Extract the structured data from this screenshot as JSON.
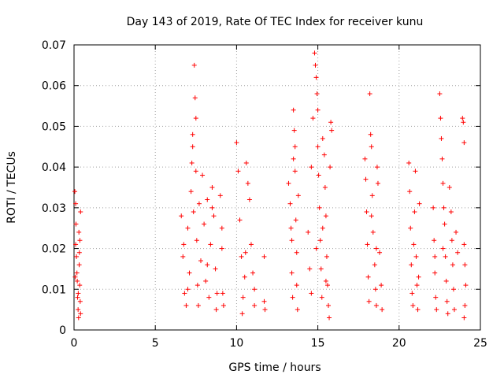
{
  "chart_data": {
    "type": "scatter",
    "title": "Day 143 of 2019, Rate Of TEC Index for receiver kunu",
    "xlabel": "GPS time / hours",
    "ylabel": "ROTI / TECUs",
    "xlim": [
      0,
      25
    ],
    "ylim": [
      0,
      0.07
    ],
    "xticks": [
      0,
      5,
      10,
      15,
      20,
      25
    ],
    "yticks": [
      0,
      0.01,
      0.02,
      0.03,
      0.04,
      0.05,
      0.06,
      0.07
    ],
    "xtick_labels": [
      "0",
      "5",
      "10",
      "15",
      "20",
      "25"
    ],
    "ytick_labels": [
      "0",
      "0.01",
      "0.02",
      "0.03",
      "0.04",
      "0.05",
      "0.06",
      "0.07"
    ],
    "grid": true,
    "marker": "plus",
    "color": "#ff0000",
    "series": [
      {
        "points": [
          [
            0.05,
            0.034
          ],
          [
            0.1,
            0.031
          ],
          [
            0.12,
            0.026
          ],
          [
            0.15,
            0.018
          ],
          [
            0.2,
            0.012
          ],
          [
            0.22,
            0.008
          ],
          [
            0.25,
            0.005
          ],
          [
            0.28,
            0.003
          ],
          [
            0.3,
            0.024
          ],
          [
            0.32,
            0.016
          ],
          [
            0.35,
            0.011
          ],
          [
            0.38,
            0.007
          ],
          [
            0.4,
            0.004
          ],
          [
            0.1,
            0.021
          ],
          [
            0.18,
            0.014
          ],
          [
            0.26,
            0.009
          ],
          [
            0.33,
            0.019
          ],
          [
            0.4,
            0.029
          ],
          [
            0.07,
            0.013
          ],
          [
            0.36,
            0.022
          ],
          [
            6.6,
            0.028
          ],
          [
            6.7,
            0.018
          ],
          [
            6.8,
            0.009
          ],
          [
            6.9,
            0.006
          ],
          [
            7.0,
            0.025
          ],
          [
            7.1,
            0.014
          ],
          [
            7.2,
            0.034
          ],
          [
            7.25,
            0.041
          ],
          [
            7.3,
            0.045
          ],
          [
            7.35,
            0.029
          ],
          [
            7.4,
            0.065
          ],
          [
            7.45,
            0.057
          ],
          [
            7.5,
            0.052
          ],
          [
            7.5,
            0.039
          ],
          [
            7.55,
            0.022
          ],
          [
            7.6,
            0.011
          ],
          [
            7.65,
            0.006
          ],
          [
            7.7,
            0.031
          ],
          [
            7.8,
            0.017
          ],
          [
            7.9,
            0.038
          ],
          [
            8.0,
            0.026
          ],
          [
            8.1,
            0.012
          ],
          [
            8.2,
            0.032
          ],
          [
            8.3,
            0.008
          ],
          [
            8.4,
            0.021
          ],
          [
            8.5,
            0.035
          ],
          [
            8.6,
            0.028
          ],
          [
            8.7,
            0.015
          ],
          [
            8.75,
            0.005
          ],
          [
            8.8,
            0.009
          ],
          [
            7.3,
            0.048
          ],
          [
            7.0,
            0.01
          ],
          [
            6.75,
            0.021
          ],
          [
            8.5,
            0.03
          ],
          [
            8.2,
            0.016
          ],
          [
            9.0,
            0.033
          ],
          [
            9.1,
            0.025
          ],
          [
            9.1,
            0.02
          ],
          [
            9.15,
            0.009
          ],
          [
            9.2,
            0.006
          ],
          [
            10.0,
            0.046
          ],
          [
            10.1,
            0.039
          ],
          [
            10.2,
            0.027
          ],
          [
            10.3,
            0.018
          ],
          [
            10.4,
            0.008
          ],
          [
            10.5,
            0.013
          ],
          [
            10.6,
            0.041
          ],
          [
            10.7,
            0.036
          ],
          [
            10.8,
            0.032
          ],
          [
            10.9,
            0.021
          ],
          [
            11.0,
            0.014
          ],
          [
            11.1,
            0.006
          ],
          [
            11.1,
            0.01
          ],
          [
            10.35,
            0.004
          ],
          [
            10.55,
            0.019
          ],
          [
            11.7,
            0.018
          ],
          [
            11.7,
            0.007
          ],
          [
            11.75,
            0.005
          ],
          [
            13.2,
            0.036
          ],
          [
            13.3,
            0.031
          ],
          [
            13.35,
            0.025
          ],
          [
            13.4,
            0.014
          ],
          [
            13.45,
            0.008
          ],
          [
            13.5,
            0.054
          ],
          [
            13.55,
            0.049
          ],
          [
            13.6,
            0.045
          ],
          [
            13.6,
            0.039
          ],
          [
            13.65,
            0.027
          ],
          [
            13.7,
            0.019
          ],
          [
            13.7,
            0.011
          ],
          [
            13.75,
            0.005
          ],
          [
            13.8,
            0.033
          ],
          [
            13.5,
            0.042
          ],
          [
            13.4,
            0.022
          ],
          [
            14.4,
            0.024
          ],
          [
            14.5,
            0.015
          ],
          [
            14.6,
            0.009
          ],
          [
            14.7,
            0.052
          ],
          [
            14.8,
            0.068
          ],
          [
            14.85,
            0.065
          ],
          [
            14.9,
            0.062
          ],
          [
            14.95,
            0.058
          ],
          [
            15.0,
            0.054
          ],
          [
            15.0,
            0.045
          ],
          [
            15.05,
            0.038
          ],
          [
            15.1,
            0.03
          ],
          [
            15.15,
            0.022
          ],
          [
            15.2,
            0.015
          ],
          [
            15.25,
            0.008
          ],
          [
            15.3,
            0.047
          ],
          [
            15.4,
            0.043
          ],
          [
            15.45,
            0.035
          ],
          [
            15.5,
            0.028
          ],
          [
            15.55,
            0.018
          ],
          [
            15.6,
            0.011
          ],
          [
            15.65,
            0.006
          ],
          [
            15.7,
            0.003
          ],
          [
            15.75,
            0.04
          ],
          [
            15.8,
            0.051
          ],
          [
            15.85,
            0.049
          ],
          [
            14.9,
            0.02
          ],
          [
            15.3,
            0.025
          ],
          [
            15.5,
            0.012
          ],
          [
            14.6,
            0.04
          ],
          [
            17.9,
            0.042
          ],
          [
            17.95,
            0.037
          ],
          [
            18.0,
            0.029
          ],
          [
            18.05,
            0.021
          ],
          [
            18.1,
            0.013
          ],
          [
            18.15,
            0.007
          ],
          [
            18.2,
            0.058
          ],
          [
            18.25,
            0.048
          ],
          [
            18.3,
            0.045
          ],
          [
            18.35,
            0.033
          ],
          [
            18.4,
            0.024
          ],
          [
            18.5,
            0.016
          ],
          [
            18.55,
            0.01
          ],
          [
            18.6,
            0.006
          ],
          [
            18.65,
            0.04
          ],
          [
            18.7,
            0.036
          ],
          [
            18.8,
            0.019
          ],
          [
            18.9,
            0.011
          ],
          [
            18.95,
            0.005
          ],
          [
            18.3,
            0.028
          ],
          [
            18.6,
            0.02
          ],
          [
            20.6,
            0.041
          ],
          [
            20.65,
            0.034
          ],
          [
            20.7,
            0.025
          ],
          [
            20.75,
            0.016
          ],
          [
            20.8,
            0.009
          ],
          [
            20.85,
            0.006
          ],
          [
            20.9,
            0.021
          ],
          [
            20.95,
            0.029
          ],
          [
            21.0,
            0.039
          ],
          [
            21.05,
            0.018
          ],
          [
            21.1,
            0.011
          ],
          [
            21.15,
            0.005
          ],
          [
            21.2,
            0.013
          ],
          [
            21.25,
            0.031
          ],
          [
            22.1,
            0.03
          ],
          [
            22.15,
            0.022
          ],
          [
            22.2,
            0.014
          ],
          [
            22.25,
            0.008
          ],
          [
            22.3,
            0.005
          ],
          [
            22.5,
            0.058
          ],
          [
            22.55,
            0.052
          ],
          [
            22.6,
            0.047
          ],
          [
            22.65,
            0.042
          ],
          [
            22.7,
            0.036
          ],
          [
            22.75,
            0.03
          ],
          [
            22.8,
            0.026
          ],
          [
            22.85,
            0.018
          ],
          [
            22.9,
            0.012
          ],
          [
            22.95,
            0.007
          ],
          [
            23.0,
            0.004
          ],
          [
            23.1,
            0.035
          ],
          [
            23.2,
            0.029
          ],
          [
            23.25,
            0.022
          ],
          [
            23.3,
            0.016
          ],
          [
            23.35,
            0.01
          ],
          [
            23.4,
            0.005
          ],
          [
            23.5,
            0.024
          ],
          [
            23.6,
            0.019
          ],
          [
            23.9,
            0.052
          ],
          [
            23.95,
            0.051
          ],
          [
            24.0,
            0.046
          ],
          [
            24.0,
            0.021
          ],
          [
            24.05,
            0.016
          ],
          [
            24.1,
            0.011
          ],
          [
            24.05,
            0.006
          ],
          [
            24.0,
            0.003
          ],
          [
            22.2,
            0.018
          ],
          [
            22.7,
            0.02
          ]
        ]
      }
    ]
  }
}
